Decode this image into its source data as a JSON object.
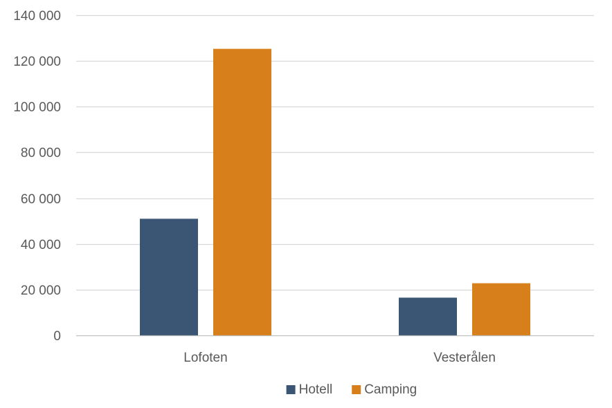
{
  "chart_data": {
    "type": "bar",
    "title": "",
    "xlabel": "",
    "ylabel": "",
    "categories": [
      "Lofoten",
      "Vesterålen"
    ],
    "series": [
      {
        "name": "Hotell",
        "color": "#3b5675",
        "values": [
          51000,
          16500
        ]
      },
      {
        "name": "Camping",
        "color": "#d77f1a",
        "values": [
          125300,
          22800
        ]
      }
    ],
    "ylim": [
      0,
      140000
    ],
    "yticks": [
      0,
      20000,
      40000,
      60000,
      80000,
      100000,
      120000,
      140000
    ],
    "ytick_labels": [
      "0",
      "20 000",
      "40 000",
      "60 000",
      "80 000",
      "100 000",
      "120 000",
      "140 000"
    ],
    "grid": true,
    "legend": "bottom-center"
  }
}
